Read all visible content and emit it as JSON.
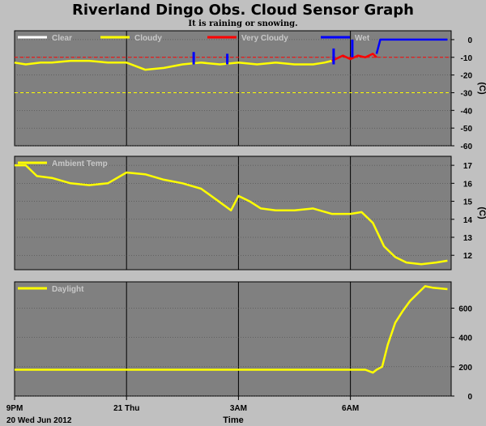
{
  "title": "Riverland Dingo Obs. Cloud Sensor Graph",
  "status_text": "It is raining or snowing.",
  "colors": {
    "background": "#c0c0c0",
    "plot_bg": "#808080",
    "grid": "#000000",
    "clear": "#ffffff",
    "cloudy": "#ffff00",
    "very_cloudy": "#ff0000",
    "wet": "#0000ff"
  },
  "x_axis": {
    "label": "Time",
    "date_label": "20 Wed Jun 2012",
    "ticks": [
      "9PM",
      "21 Thu",
      "3AM",
      "6AM"
    ],
    "tick_hours": [
      21,
      24,
      27,
      30
    ],
    "range_hours": [
      21,
      32.7
    ]
  },
  "chart_data": [
    {
      "type": "line",
      "name": "sky-temperature",
      "ylabel": "(C)",
      "ylim": [
        -60,
        5
      ],
      "yticks": [
        0,
        -10,
        -20,
        -30,
        -40,
        -50,
        -60
      ],
      "thresholds": [
        {
          "value": -10,
          "color": "#ff0000",
          "style": "dashed"
        },
        {
          "value": -30,
          "color": "#ffff00",
          "style": "dashed"
        }
      ],
      "legend": [
        "Clear",
        "Cloudy",
        "Very Cloudy",
        "Wet"
      ],
      "series": [
        {
          "name": "Cloudy",
          "color": "#ffff00",
          "x": [
            21.0,
            21.3,
            21.7,
            22.0,
            22.5,
            23.0,
            23.5,
            24.0,
            24.5,
            25.0,
            25.5,
            26.0,
            26.5,
            27.0,
            27.5,
            28.0,
            28.5,
            29.0,
            29.3,
            29.5
          ],
          "y": [
            -13,
            -14,
            -13,
            -13,
            -12,
            -12,
            -13,
            -13,
            -17,
            -16,
            -14,
            -13,
            -14,
            -13,
            -14,
            -13,
            -14,
            -14,
            -13,
            -12
          ]
        },
        {
          "name": "Very Cloudy",
          "color": "#ff0000",
          "x": [
            29.5,
            29.8,
            30.0,
            30.2,
            30.4,
            30.6,
            30.7
          ],
          "y": [
            -12,
            -9,
            -11,
            -9,
            -10,
            -8,
            -10
          ]
        },
        {
          "name": "Wet",
          "color": "#0000ff",
          "x": [
            30.7,
            30.8,
            31.0,
            31.5,
            32.0,
            32.5,
            32.6
          ],
          "y": [
            -8,
            0,
            0,
            0,
            0,
            0,
            0
          ]
        }
      ],
      "wet_spikes": [
        {
          "x": 25.8,
          "y": [
            -7,
            -14
          ]
        },
        {
          "x": 26.7,
          "y": [
            -8,
            -14
          ]
        },
        {
          "x": 29.55,
          "y": [
            -5,
            -14
          ]
        },
        {
          "x": 30.05,
          "y": [
            0,
            -10
          ]
        }
      ]
    },
    {
      "type": "line",
      "name": "ambient-temperature",
      "ylabel": "(C)",
      "ylim": [
        11.2,
        17.5
      ],
      "yticks": [
        17,
        16,
        15,
        14,
        13,
        12
      ],
      "legend": [
        "Ambient Temp"
      ],
      "series": [
        {
          "name": "Ambient Temp",
          "color": "#ffff00",
          "x": [
            21.0,
            21.3,
            21.6,
            22.0,
            22.5,
            23.0,
            23.5,
            24.0,
            24.5,
            25.0,
            25.5,
            26.0,
            26.4,
            26.8,
            27.0,
            27.3,
            27.6,
            28.0,
            28.5,
            29.0,
            29.5,
            30.0,
            30.3,
            30.6,
            30.9,
            31.2,
            31.5,
            31.9,
            32.3,
            32.6
          ],
          "y": [
            17.0,
            17.0,
            16.4,
            16.3,
            16.0,
            15.9,
            16.0,
            16.6,
            16.5,
            16.2,
            16.0,
            15.7,
            15.1,
            14.5,
            15.3,
            15.0,
            14.6,
            14.5,
            14.5,
            14.6,
            14.3,
            14.3,
            14.4,
            13.8,
            12.5,
            11.9,
            11.6,
            11.5,
            11.6,
            11.7
          ]
        }
      ]
    },
    {
      "type": "line",
      "name": "daylight",
      "ylabel": "",
      "ylim": [
        0,
        780
      ],
      "yticks": [
        600,
        400,
        200,
        0
      ],
      "legend": [
        "Daylight"
      ],
      "series": [
        {
          "name": "Daylight",
          "color": "#ffff00",
          "x": [
            21.0,
            22.0,
            23.0,
            24.0,
            25.0,
            26.0,
            27.0,
            28.0,
            29.0,
            29.5,
            30.0,
            30.4,
            30.6,
            30.7,
            30.85,
            31.0,
            31.2,
            31.4,
            31.6,
            31.8,
            32.0,
            32.2,
            32.6
          ],
          "y": [
            180,
            180,
            180,
            180,
            180,
            180,
            180,
            180,
            180,
            180,
            180,
            180,
            160,
            180,
            200,
            350,
            500,
            580,
            650,
            700,
            750,
            740,
            730
          ]
        }
      ]
    }
  ]
}
